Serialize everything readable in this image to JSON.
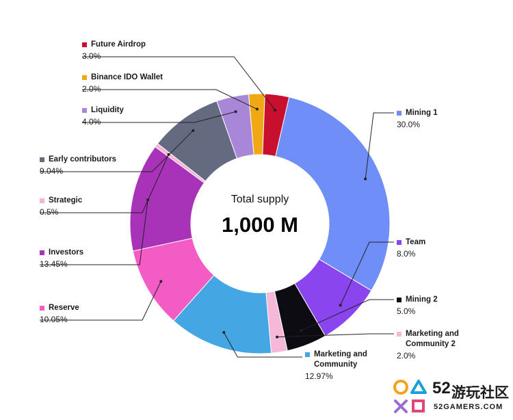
{
  "chart_data": {
    "type": "pie",
    "center_title": "Total supply",
    "center_value": "1,000 M",
    "slices": [
      {
        "name": "Mining 1",
        "value": 30.0,
        "label": "30.0%",
        "color": "#6f8ef8"
      },
      {
        "name": "Team",
        "value": 8.0,
        "label": "8.0%",
        "color": "#8b45ee"
      },
      {
        "name": "Mining 2",
        "value": 5.0,
        "label": "5.0%",
        "color": "#0c0c12"
      },
      {
        "name": "Marketing and\nCommunity 2",
        "value": 2.0,
        "label": "2.0%",
        "color": "#f6b8d9"
      },
      {
        "name": "Marketing and\nCommunity",
        "value": 12.97,
        "label": "12.97%",
        "color": "#44a6e2"
      },
      {
        "name": "Reserve",
        "value": 10.05,
        "label": "10.05%",
        "color": "#f45cc5"
      },
      {
        "name": "Investors",
        "value": 13.45,
        "label": "13.45%",
        "color": "#a832b8"
      },
      {
        "name": "Strategic",
        "value": 0.5,
        "label": "0.5%",
        "color": "#f6b3d6"
      },
      {
        "name": "Early contributors",
        "value": 9.04,
        "label": "9.04%",
        "color": "#646b80"
      },
      {
        "name": "Liquidity",
        "value": 4.0,
        "label": "4.0%",
        "color": "#a987d8"
      },
      {
        "name": "Binance IDO Wallet",
        "value": 2.0,
        "label": "2.0%",
        "color": "#f0a915"
      },
      {
        "name": "Future Airdrop",
        "value": 3.0,
        "label": "3.0%",
        "color": "#c8102e"
      }
    ]
  },
  "watermark": {
    "brand_number": "52",
    "brand_name": "游玩社区",
    "site": "52GAMERS.COM",
    "icon": "playstation-buttons-logo"
  }
}
